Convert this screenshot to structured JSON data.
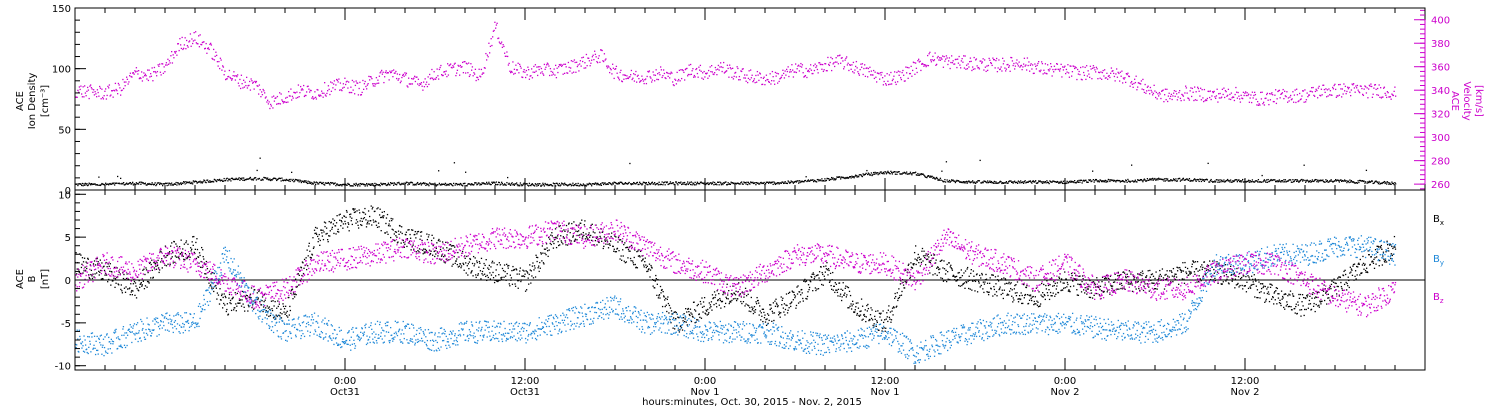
{
  "colors": {
    "black": "#000000",
    "magenta": "#cc00cc",
    "blue": "#1e88d8",
    "background": "#ffffff"
  },
  "chart_data": [
    {
      "type": "scatter",
      "panel": "top",
      "title": "",
      "left_axis": {
        "label_lines": [
          "ACE",
          "Ion Density",
          "[cm⁻³]"
        ],
        "ylim": [
          0,
          150
        ],
        "ticks": [
          0,
          50,
          100,
          150
        ],
        "tick_labels": [
          "0",
          "50",
          "100",
          "150"
        ],
        "color": "#000000"
      },
      "right_axis": {
        "label_lines": [
          "ACE",
          "Velocity",
          "[km/s]"
        ],
        "ylim": [
          255,
          410
        ],
        "ticks": [
          260,
          280,
          300,
          320,
          340,
          360,
          380,
          400
        ],
        "tick_labels": [
          "260",
          "280",
          "300",
          "320",
          "340",
          "360",
          "380",
          "400"
        ],
        "color": "#cc00cc"
      },
      "series": [
        {
          "axis": "left",
          "color": "#000000",
          "x_hours": [
            0,
            2,
            4,
            6,
            8,
            10,
            12,
            14,
            16,
            18,
            20,
            22,
            24,
            26,
            28,
            30,
            32,
            34,
            36,
            38,
            40,
            42,
            44,
            46,
            48,
            50,
            52,
            54,
            56,
            58,
            60,
            62,
            64,
            66,
            68,
            70,
            72,
            74,
            76,
            78,
            80,
            82,
            84,
            86,
            88
          ],
          "values": [
            5,
            5,
            6,
            5,
            7,
            9,
            10,
            9,
            6,
            5,
            5,
            6,
            5,
            5,
            6,
            5,
            5,
            5,
            6,
            6,
            6,
            6,
            6,
            6,
            7,
            9,
            12,
            15,
            14,
            8,
            7,
            7,
            7,
            7,
            8,
            8,
            9,
            9,
            8,
            8,
            8,
            8,
            8,
            7,
            6
          ]
        },
        {
          "axis": "right",
          "color": "#cc00cc",
          "x_hours": [
            0,
            1,
            2,
            3,
            4,
            5,
            6,
            7,
            8,
            9,
            10,
            11,
            12,
            13,
            14,
            15,
            16,
            17,
            18,
            19,
            20,
            21,
            22,
            23,
            24,
            25,
            26,
            27,
            28,
            29,
            30,
            31,
            32,
            33,
            34,
            35,
            36,
            37,
            38,
            39,
            40,
            41,
            42,
            43,
            44,
            45,
            46,
            47,
            48,
            49,
            50,
            51,
            52,
            53,
            54,
            55,
            56,
            57,
            58,
            59,
            60,
            61,
            62,
            63,
            64,
            65,
            66,
            67,
            68,
            69,
            70,
            71,
            72,
            73,
            74,
            75,
            76,
            77,
            78,
            79,
            80,
            81,
            82,
            83,
            84,
            85,
            86,
            87,
            88
          ],
          "values": [
            340,
            339,
            338,
            342,
            355,
            353,
            360,
            380,
            385,
            375,
            355,
            348,
            345,
            330,
            335,
            340,
            338,
            343,
            345,
            342,
            350,
            355,
            350,
            345,
            355,
            358,
            360,
            352,
            395,
            360,
            355,
            358,
            357,
            360,
            365,
            370,
            355,
            352,
            352,
            355,
            350,
            358,
            355,
            360,
            355,
            352,
            350,
            352,
            358,
            357,
            362,
            365,
            360,
            355,
            350,
            352,
            360,
            368,
            365,
            364,
            363,
            362,
            362,
            364,
            360,
            358,
            357,
            355,
            356,
            354,
            352,
            345,
            338,
            335,
            338,
            337,
            336,
            338,
            335,
            333,
            335,
            336,
            336,
            340,
            340,
            341,
            340,
            340,
            338
          ]
        }
      ]
    },
    {
      "type": "scatter",
      "panel": "bottom",
      "title": "",
      "left_axis": {
        "label_lines": [
          "ACE",
          "B",
          "[nT]"
        ],
        "ylim": [
          -10.5,
          10.5
        ],
        "ticks": [
          -10,
          -5,
          0,
          5,
          10
        ],
        "tick_labels": [
          "-10",
          "-5",
          "0",
          "5",
          "10"
        ],
        "color": "#000000"
      },
      "zero_line": true,
      "series": [
        {
          "name": "Bx",
          "color": "#000000",
          "x_hours": [
            0,
            2,
            4,
            6,
            8,
            10,
            12,
            14,
            16,
            18,
            20,
            22,
            24,
            26,
            28,
            30,
            32,
            34,
            36,
            38,
            40,
            42,
            44,
            46,
            48,
            50,
            52,
            54,
            56,
            58,
            60,
            62,
            64,
            66,
            68,
            70,
            72,
            74,
            76,
            78,
            80,
            82,
            84,
            86,
            88
          ],
          "values": [
            2,
            1,
            -1,
            3,
            4,
            -3,
            -2,
            -4,
            5,
            7,
            7.5,
            5,
            4,
            2,
            1,
            0,
            5,
            6,
            4,
            2,
            -5,
            -3,
            -1,
            -4,
            -2,
            1,
            -3,
            -5,
            3,
            1,
            0,
            -1,
            -2,
            0,
            -1,
            0,
            0,
            1,
            1,
            0,
            -2,
            -3,
            -1,
            2,
            4
          ]
        },
        {
          "name": "By",
          "color": "#1e88d8",
          "x_hours": [
            0,
            2,
            4,
            6,
            8,
            10,
            12,
            14,
            16,
            18,
            20,
            22,
            24,
            26,
            28,
            30,
            32,
            34,
            36,
            38,
            40,
            42,
            44,
            46,
            48,
            50,
            52,
            54,
            56,
            58,
            60,
            62,
            64,
            66,
            68,
            70,
            72,
            74,
            76,
            78,
            80,
            82,
            84,
            86,
            88
          ],
          "values": [
            -7,
            -7.5,
            -6,
            -5,
            -5,
            3,
            -3,
            -6,
            -5,
            -7,
            -6,
            -6,
            -7,
            -6,
            -6,
            -6,
            -5,
            -4,
            -3,
            -5,
            -5,
            -6,
            -6,
            -6,
            -7,
            -7.5,
            -7,
            -6,
            -8.5,
            -7,
            -6,
            -5,
            -5,
            -5,
            -5.5,
            -6,
            -6,
            -5,
            2,
            2,
            3,
            3,
            4,
            4,
            3
          ]
        },
        {
          "name": "Bz",
          "color": "#cc00cc",
          "x_hours": [
            0,
            2,
            4,
            6,
            8,
            10,
            12,
            14,
            16,
            18,
            20,
            22,
            24,
            26,
            28,
            30,
            32,
            34,
            36,
            38,
            40,
            42,
            44,
            46,
            48,
            50,
            52,
            54,
            56,
            58,
            60,
            62,
            64,
            66,
            68,
            70,
            72,
            74,
            76,
            78,
            80,
            82,
            84,
            86,
            88
          ],
          "values": [
            0,
            2,
            1,
            3,
            2,
            0,
            -2,
            -1,
            2,
            2.5,
            3,
            4,
            3,
            4,
            5,
            5,
            6,
            5,
            6,
            4,
            2,
            1,
            -1,
            1,
            3,
            3,
            2,
            2,
            0,
            5,
            3,
            2,
            0,
            2,
            -1,
            0,
            -1,
            -1,
            1,
            2,
            2,
            0,
            -2,
            -3,
            -1
          ]
        }
      ],
      "legend": [
        {
          "label": "B",
          "sub": "x",
          "color": "#000000"
        },
        {
          "label": "B",
          "sub": "y",
          "color": "#1e88d8"
        },
        {
          "label": "B",
          "sub": "z",
          "color": "#cc00cc"
        }
      ]
    }
  ],
  "x_axis": {
    "range_hours": [
      0,
      90
    ],
    "major_ticks": [
      {
        "hour": 18,
        "line1": "0:00",
        "line2": "Oct31"
      },
      {
        "hour": 30,
        "line1": "12:00",
        "line2": "Oct31"
      },
      {
        "hour": 42,
        "line1": "0:00",
        "line2": "Nov 1"
      },
      {
        "hour": 54,
        "line1": "12:00",
        "line2": "Nov 1"
      },
      {
        "hour": 66,
        "line1": "0:00",
        "line2": "Nov 2"
      },
      {
        "hour": 78,
        "line1": "12:00",
        "line2": "Nov 2"
      }
    ],
    "label": "hours:minutes, Oct. 30, 2015 - Nov.  2, 2015"
  }
}
